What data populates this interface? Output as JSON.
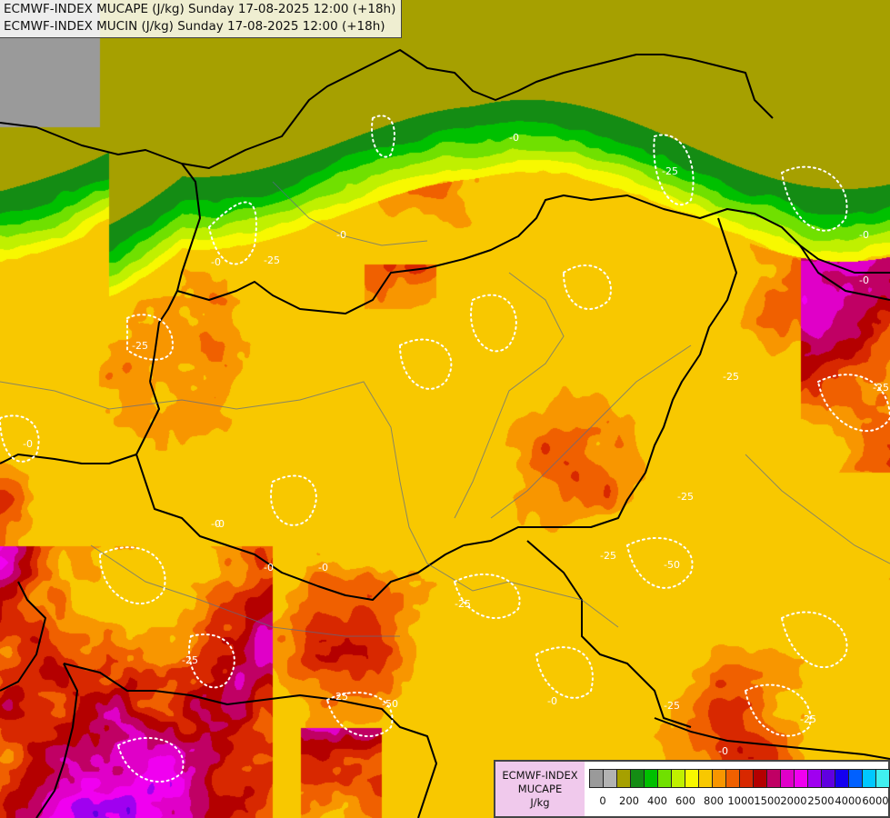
{
  "header": {
    "line1": "ECMWF-INDEX MUCAPE (J/kg) Sunday 17-08-2025 12:00 (+18h)",
    "line2": "ECMWF-INDEX MUCIN (J/kg) Sunday 17-08-2025 12:00 (+18h)"
  },
  "legend": {
    "model": "ECMWF-INDEX",
    "variable": "MUCAPE",
    "unit": "J/kg",
    "colors": [
      "#9a9a9a",
      "#b2b2b2",
      "#a6a000",
      "#148c14",
      "#00c000",
      "#70e000",
      "#c0f000",
      "#f8f800",
      "#f8c800",
      "#f89600",
      "#f06000",
      "#d82800",
      "#b40000",
      "#c00064",
      "#e000c8",
      "#f000f0",
      "#a000f0",
      "#6000e0",
      "#1400f0",
      "#0060ff",
      "#00c8ff",
      "#40f0f0",
      "#ffffff"
    ],
    "tick_labels": [
      "0",
      "200",
      "400",
      "600",
      "800",
      "1000",
      "1500",
      "2000",
      "2500",
      "4000",
      "6000"
    ]
  },
  "cin_labels": [
    "-0",
    "-0",
    "-0",
    "-0",
    "-0",
    "-0",
    "-0",
    "-0",
    "-0",
    "-0",
    "-0",
    "-0",
    "-25",
    "-25",
    "-25",
    "-25",
    "-25",
    "-25",
    "-25",
    "-25",
    "-25",
    "-25",
    "-25",
    "-25",
    "-50",
    "-50"
  ]
}
